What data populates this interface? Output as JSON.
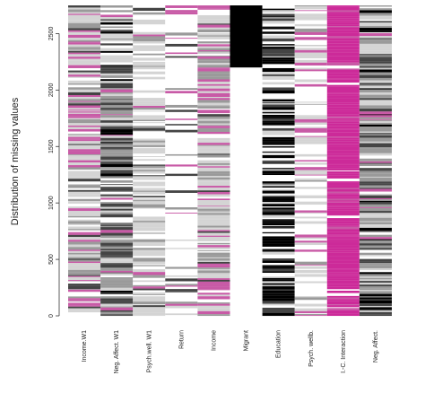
{
  "chart_data": {
    "type": "heatmap",
    "title": "",
    "ylabel": "Distribution of missing values",
    "xlabel": "",
    "ylim": [
      0,
      2750
    ],
    "yticks": [
      0,
      500,
      1000,
      1500,
      2000,
      2500
    ],
    "rows_per_column": 2750,
    "columns": [
      {
        "label": "Income.W1",
        "palette": "pink-grey",
        "missing_fraction": 0.0
      },
      {
        "label": "Neg. Affect. W1",
        "palette": "grey-dark",
        "missing_fraction": 0.0
      },
      {
        "label": "Psych.well. W1",
        "palette": "light-grey",
        "missing_fraction": 0.0
      },
      {
        "label": "Return",
        "palette": "white-sparse",
        "missing_fraction": 0.0
      },
      {
        "label": "Income",
        "palette": "pink-grey",
        "missing_fraction": 0.0
      },
      {
        "label": "Migrant",
        "palette": "black-block",
        "observed_from": 2200
      },
      {
        "label": "Education",
        "palette": "black-white",
        "missing_fraction": 0.0
      },
      {
        "label": "Psych. wellb.",
        "palette": "light-pink",
        "missing_fraction": 0.0
      },
      {
        "label": "I.-C. Interaction",
        "palette": "magenta",
        "missing_fraction": 0.0
      },
      {
        "label": "Neg. Affect.",
        "palette": "grey-dark",
        "missing_fraction": 0.0
      }
    ],
    "colors": {
      "magenta": "#cc2a99",
      "pink": "#c85aa6",
      "black": "#000000",
      "dark_grey": "#444444",
      "mid_grey": "#9a9a9a",
      "light_grey": "#d4d4d4",
      "white": "#ffffff"
    },
    "grid": false
  }
}
